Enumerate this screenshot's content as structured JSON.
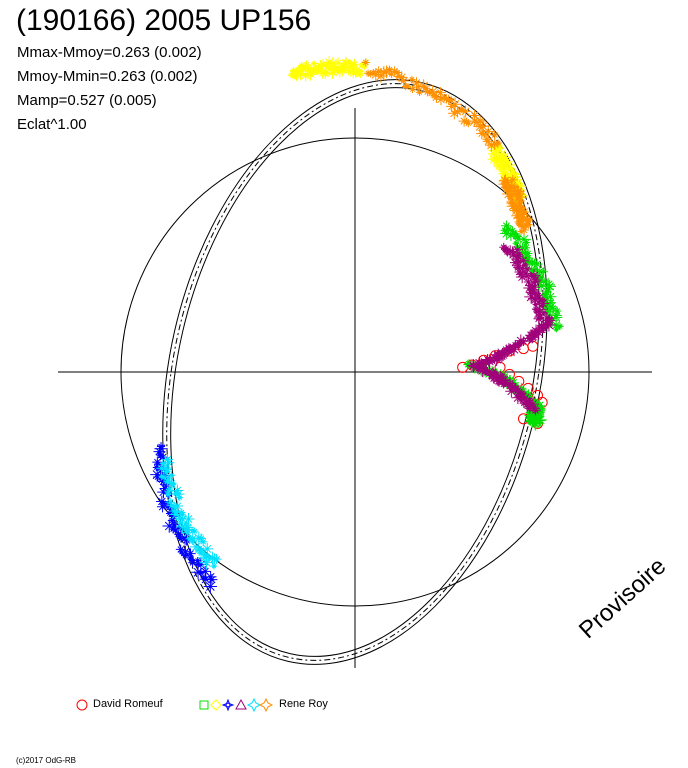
{
  "title": "(190166) 2005 UP156",
  "stats": [
    "Mmax-Mmoy=0.263 (0.002)",
    "Mmoy-Mmin=0.263 (0.002)",
    "Mamp=0.527 (0.005)",
    "Eclat^1.00"
  ],
  "watermark": "Provisoire",
  "copyright": "(c)2017 OdG-RB",
  "legend": {
    "observer1": "David Romeuf",
    "observer2": "Rene Roy"
  },
  "colors": {
    "red": "#ff0000",
    "green": "#00e000",
    "yellow": "#ffff00",
    "blue": "#0000ff",
    "purple": "#a0007a",
    "cyan": "#00e0ff",
    "orange": "#ff9000"
  },
  "chart_data": {
    "type": "scatter",
    "projection": "polar phase plot (brightness^1.00 as radius, rotational phase as angle)",
    "reference_circle_radius": 1.0,
    "model_curve": "dashed double-peaked light-curve fit",
    "series": [
      {
        "name": "David Romeuf",
        "marker": "circle",
        "color": "#ff0000",
        "points": [
          [
            0.46,
            0.02
          ],
          [
            0.5,
            0.03
          ],
          [
            0.55,
            0.05
          ],
          [
            0.6,
            0.07
          ],
          [
            0.66,
            0.09
          ],
          [
            0.72,
            0.1
          ],
          [
            0.76,
            0.11
          ],
          [
            0.62,
            0.02
          ],
          [
            0.66,
            -0.01
          ],
          [
            0.7,
            -0.04
          ],
          [
            0.74,
            -0.07
          ],
          [
            0.78,
            -0.1
          ],
          [
            0.8,
            -0.13
          ],
          [
            0.76,
            -0.18
          ],
          [
            0.72,
            -0.2
          ],
          [
            0.78,
            -0.22
          ]
        ]
      },
      {
        "name": "Rene Roy",
        "marker": "multi-symbol",
        "arcs": [
          {
            "color": "#00e000",
            "from_deg": 44,
            "to_deg": 12,
            "r_from": 0.9,
            "r_to": 0.88
          },
          {
            "color": "#00e000",
            "from_deg": 4,
            "to_deg": -10,
            "r_from": 0.5,
            "r_to": 0.78
          },
          {
            "color": "#00e000",
            "from_deg": -10,
            "to_deg": -16,
            "r_from": 0.78,
            "r_to": 0.8
          },
          {
            "color": "#a0007a",
            "from_deg": 40,
            "to_deg": 14,
            "r_from": 0.85,
            "r_to": 0.84
          },
          {
            "color": "#a0007a",
            "from_deg": 14,
            "to_deg": 3,
            "r_from": 0.84,
            "r_to": 0.52
          },
          {
            "color": "#a0007a",
            "from_deg": 3,
            "to_deg": -12,
            "r_from": 0.52,
            "r_to": 0.78
          },
          {
            "color": "#ffff00",
            "from_deg": 102,
            "to_deg": 88,
            "r_from": 1.31,
            "r_to": 1.3
          },
          {
            "color": "#ffff00",
            "from_deg": 58,
            "to_deg": 46,
            "r_from": 1.12,
            "r_to": 1.02
          },
          {
            "color": "#ff9000",
            "from_deg": 88,
            "to_deg": 58,
            "r_from": 1.3,
            "r_to": 1.15
          },
          {
            "color": "#ff9000",
            "from_deg": 52,
            "to_deg": 40,
            "r_from": 1.05,
            "r_to": 0.95
          },
          {
            "color": "#0000ff",
            "from_deg": 201,
            "to_deg": 236,
            "r_from": 0.9,
            "r_to": 1.1
          },
          {
            "color": "#00e0ff",
            "from_deg": 205,
            "to_deg": 234,
            "r_from": 0.9,
            "r_to": 1.02
          }
        ]
      }
    ]
  }
}
